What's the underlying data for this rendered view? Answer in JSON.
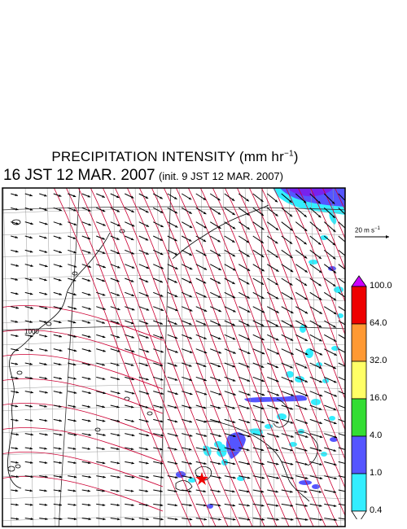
{
  "header": {
    "title_prefix": "PRECIPITATION INTENSITY (mm hr",
    "title_exp": "−1",
    "title_suffix": ")",
    "valid_time": "16 JST 12 MAR. 2007",
    "init_time": "(init. 9 JST 12 MAR. 2007)"
  },
  "wind_reference": {
    "label_prefix": "20 m s",
    "label_exp": "−1"
  },
  "isobar_label": "1000",
  "colorbar": {
    "levels": [
      "100.0",
      "64.0",
      "32.0",
      "16.0",
      "4.0",
      "1.0",
      "0.4"
    ],
    "colors": [
      "#ee0000",
      "#ff9933",
      "#ffff66",
      "#33dd33",
      "#5555ff",
      "#33eeff",
      "#ffffff"
    ],
    "top_arrow_color": "#cc00ff"
  },
  "map_colors": {
    "precip_light": "#33eeff",
    "precip_moderate": "#5555ff",
    "precip_heavy": "#7722ee",
    "isobar": "#cc0033",
    "grid": "#999999",
    "marker": "#ee0000"
  }
}
